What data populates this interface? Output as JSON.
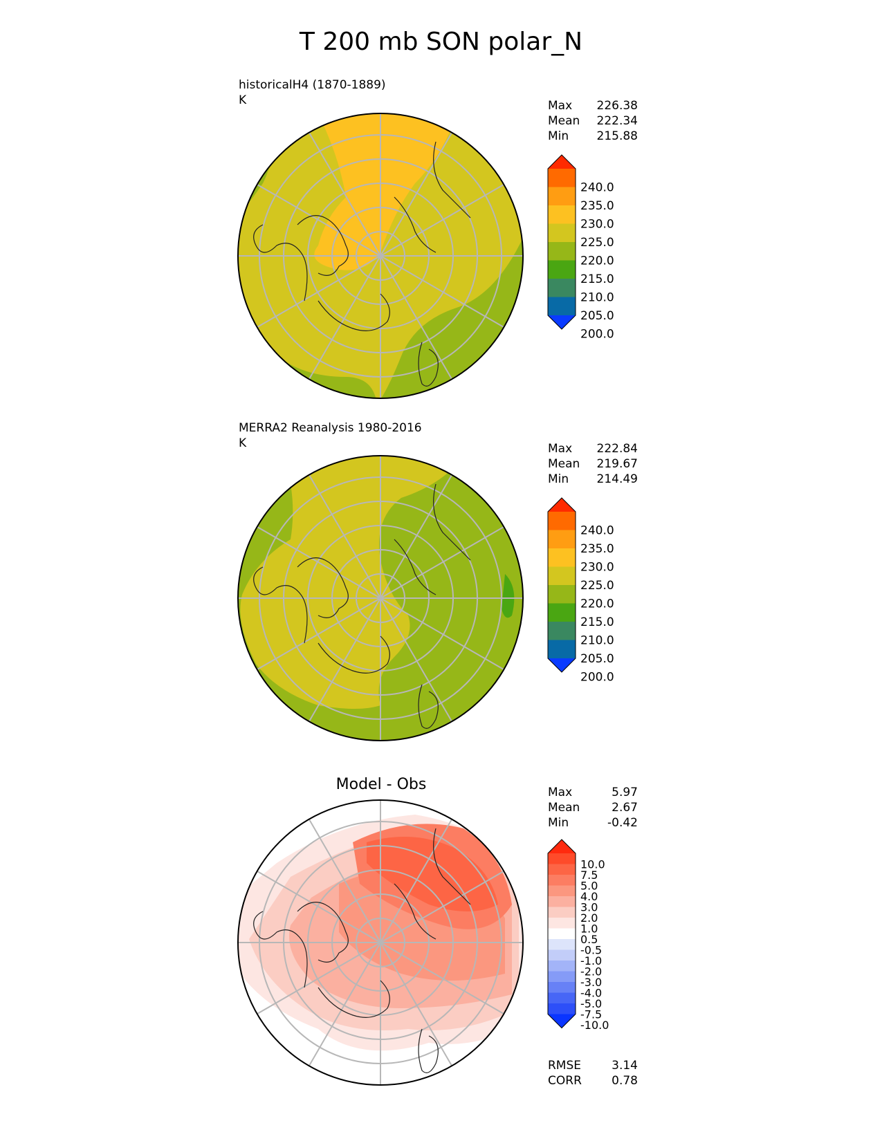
{
  "title": "T 200 mb SON polar_N",
  "panels": [
    {
      "id": "model",
      "title_line1": "historicalH4 (1870-1889)",
      "title_line2": "K",
      "stats": [
        {
          "label": "Max",
          "value": "226.38"
        },
        {
          "label": "Mean",
          "value": "222.34"
        },
        {
          "label": "Min",
          "value": "215.88"
        }
      ]
    },
    {
      "id": "obs",
      "title_line1": "MERRA2 Reanalysis 1980-2016",
      "title_line2": "K",
      "stats": [
        {
          "label": "Max",
          "value": "222.84"
        },
        {
          "label": "Mean",
          "value": "219.67"
        },
        {
          "label": "Min",
          "value": "214.49"
        }
      ]
    },
    {
      "id": "diff",
      "title_center": "Model - Obs",
      "stats": [
        {
          "label": "Max",
          "value": "5.97"
        },
        {
          "label": "Mean",
          "value": "2.67"
        },
        {
          "label": "Min",
          "value": "-0.42"
        }
      ],
      "metrics": [
        {
          "label": "RMSE",
          "value": "3.14"
        },
        {
          "label": "CORR",
          "value": "0.78"
        }
      ]
    }
  ],
  "chart_data": [
    {
      "type": "heatmap",
      "projection": "north polar stereographic",
      "variable": "T 200 mb SON",
      "units": "K",
      "colorbar": {
        "extend": "both",
        "labels": [
          "240.0",
          "235.0",
          "230.0",
          "225.0",
          "220.0",
          "215.0",
          "210.0",
          "205.0",
          "200.0"
        ],
        "colors": [
          "#ff2a00",
          "#ff6a00",
          "#ff9d12",
          "#fdc121",
          "#d3c61f",
          "#96b718",
          "#4aa612",
          "#3a8860",
          "#086aa6",
          "#0a3bff"
        ]
      },
      "fields": {
        "model_mean": 222.34,
        "obs_mean": 219.67
      }
    },
    {
      "type": "heatmap",
      "projection": "north polar stereographic",
      "units": "K",
      "colorbar": {
        "extend": "both",
        "labels": [
          "10.0",
          "7.5",
          "5.0",
          "4.0",
          "3.0",
          "2.0",
          "1.0",
          "0.5",
          "-0.5",
          "-1.0",
          "-2.0",
          "-3.0",
          "-4.0",
          "-5.0",
          "-7.5",
          "-10.0"
        ],
        "colors": [
          "#ff2a0e",
          "#fe4b2a",
          "#fd6545",
          "#fc7d62",
          "#fb977f",
          "#fbb0a0",
          "#fbcdc3",
          "#fde6e2",
          "#ffffff",
          "#dde4fb",
          "#c2cdf9",
          "#a3b4f8",
          "#859bf7",
          "#6781f6",
          "#4766f6",
          "#2d4ff8",
          "#0a35ff"
        ]
      }
    }
  ]
}
